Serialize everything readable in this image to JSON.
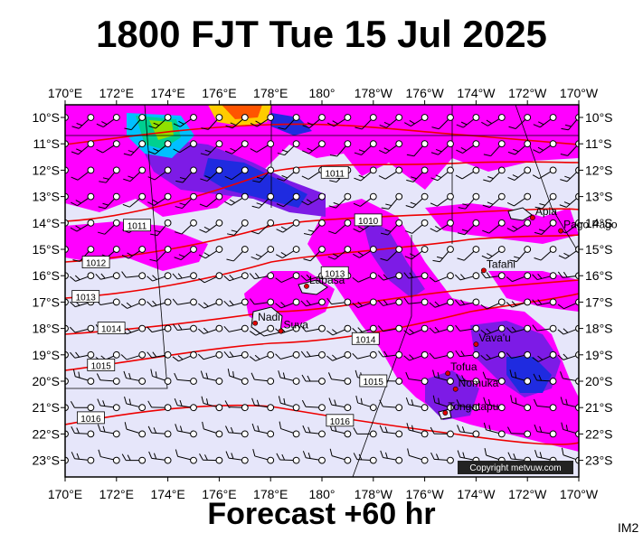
{
  "title": "1800 FJT Tue 15 Jul 2025",
  "footer": "Forecast +60 hr",
  "image_tag": "IM2",
  "copyright": "Copyright metvuw.com",
  "lon_labels": [
    "170°E",
    "172°E",
    "174°E",
    "176°E",
    "178°E",
    "180°",
    "178°W",
    "176°W",
    "174°W",
    "172°W",
    "170°W"
  ],
  "lat_labels": [
    "10°S",
    "11°S",
    "12°S",
    "13°S",
    "14°S",
    "15°S",
    "16°S",
    "17°S",
    "18°S",
    "19°S",
    "20°S",
    "21°S",
    "22°S",
    "23°S"
  ],
  "places": [
    {
      "name": "Apia",
      "lon": -171.8,
      "lat": -13.8
    },
    {
      "name": "Pago Pago",
      "lon": -170.7,
      "lat": -14.3
    },
    {
      "name": "Tafahi",
      "lon": -173.7,
      "lat": -15.8
    },
    {
      "name": "Labasa",
      "lon": 179.4,
      "lat": -16.4
    },
    {
      "name": "Nadi",
      "lon": 177.4,
      "lat": -17.8
    },
    {
      "name": "Suva",
      "lon": 178.4,
      "lat": -18.1
    },
    {
      "name": "Vava'u",
      "lon": -174.0,
      "lat": -18.6
    },
    {
      "name": "Tofua",
      "lon": -175.1,
      "lat": -19.7
    },
    {
      "name": "Nomuka",
      "lon": -174.8,
      "lat": -20.3
    },
    {
      "name": "Tongatapu",
      "lon": -175.2,
      "lat": -21.2
    }
  ],
  "isobars": [
    {
      "label": "1011",
      "lon": -179.5,
      "lat": -12.1
    },
    {
      "label": "1011",
      "lon": 172.8,
      "lat": -14.1
    },
    {
      "label": "1010",
      "lon": -178.2,
      "lat": -13.9
    },
    {
      "label": "1012",
      "lon": 171.2,
      "lat": -15.5
    },
    {
      "label": "1013",
      "lon": -179.5,
      "lat": -15.9
    },
    {
      "label": "1013",
      "lon": 170.8,
      "lat": -16.8
    },
    {
      "label": "1014",
      "lon": 171.8,
      "lat": -18.0
    },
    {
      "label": "1014",
      "lon": -178.3,
      "lat": -18.4
    },
    {
      "label": "1015",
      "lon": 171.4,
      "lat": -19.4
    },
    {
      "label": "1015",
      "lon": -178.0,
      "lat": -20.0
    },
    {
      "label": "1016",
      "lon": 171.0,
      "lat": -21.4
    },
    {
      "label": "1016",
      "lon": -179.3,
      "lat": -21.5
    }
  ],
  "colors": {
    "background": "#e6e6fa",
    "rain_light": "#ff00ff",
    "rain_mid": "#7d1be6",
    "rain_heavy": "#1f2be0",
    "rain_extreme": "#00c0ff",
    "isobar": "#ee0000"
  }
}
